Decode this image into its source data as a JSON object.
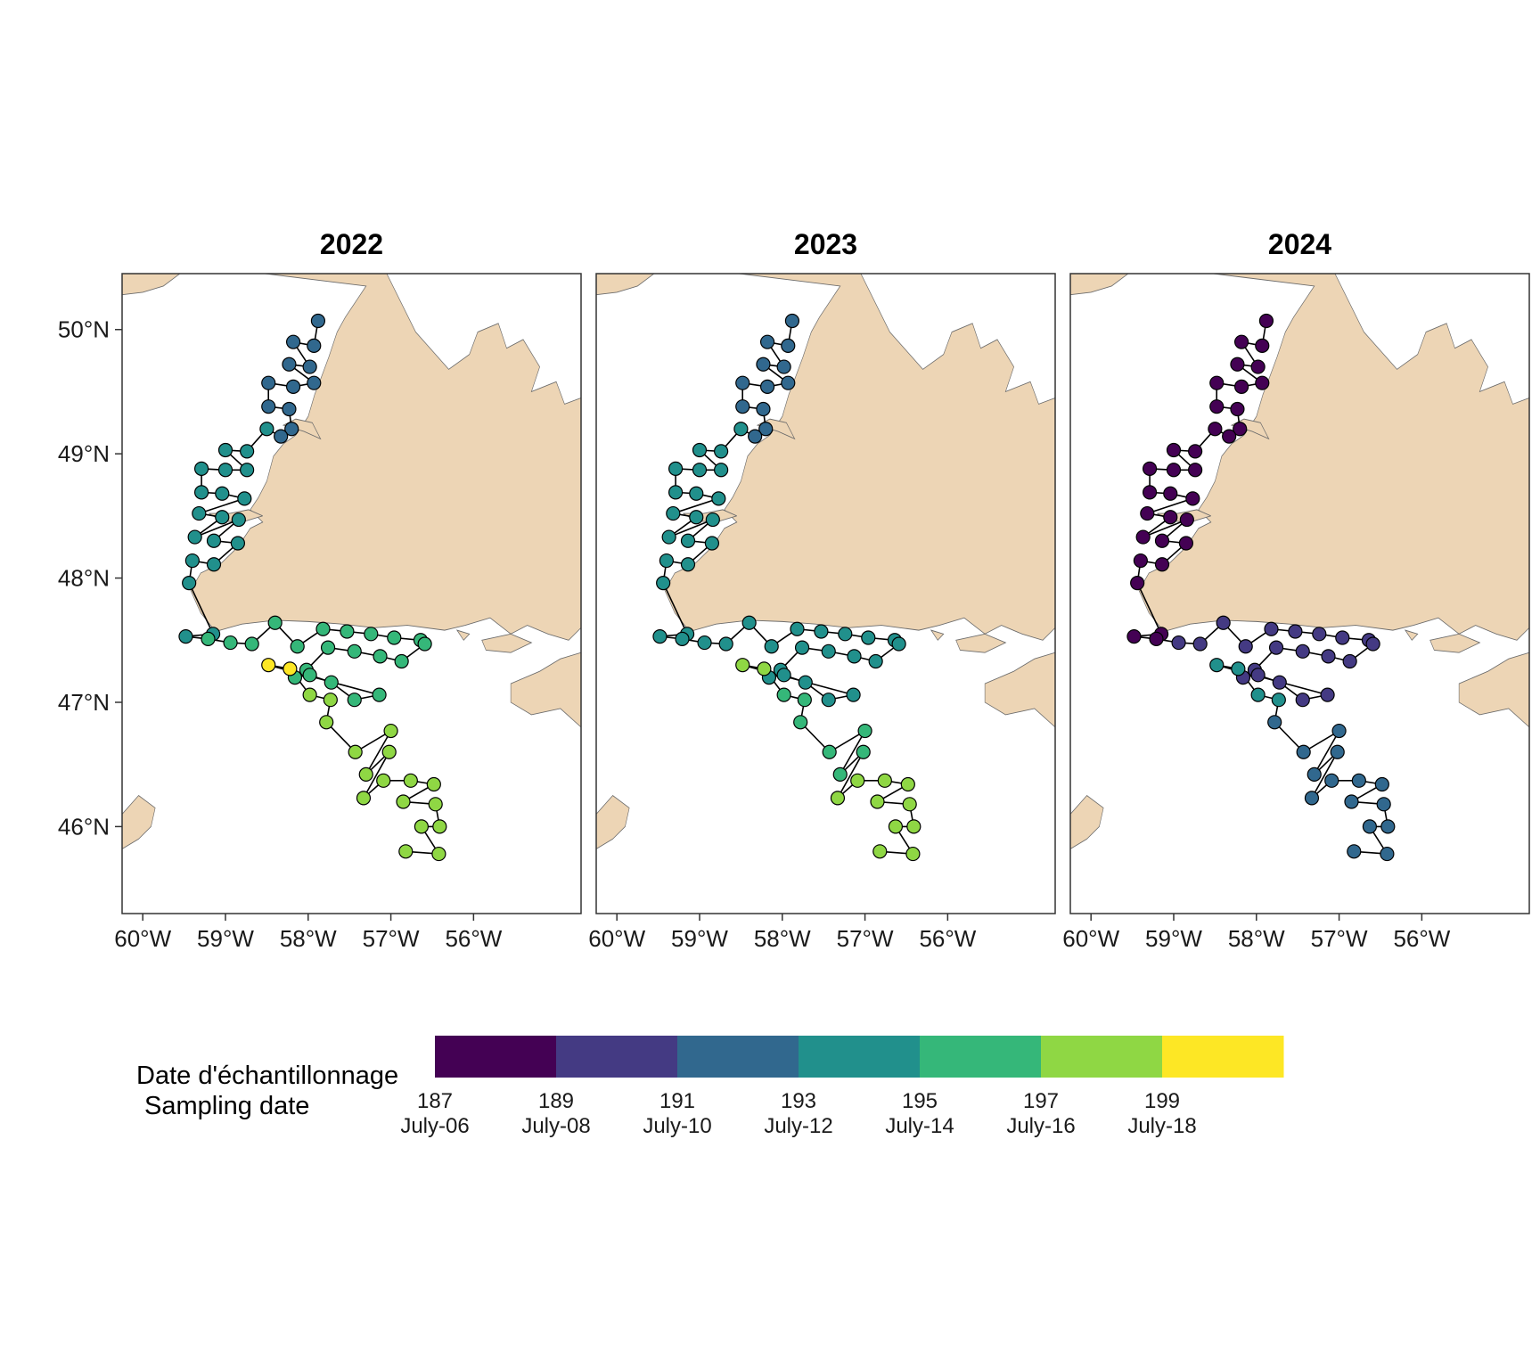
{
  "chart_data": {
    "type": "map",
    "panels": [
      {
        "title": "2022",
        "station_doy": [
          192,
          192,
          192,
          192,
          192,
          192,
          192,
          192,
          192,
          192,
          192,
          192,
          193,
          193,
          193,
          193,
          193,
          193,
          193,
          193,
          193,
          193,
          193,
          193,
          194,
          194,
          194,
          194,
          194,
          194,
          194,
          194,
          195,
          195,
          195,
          195,
          195,
          195,
          195,
          195,
          195,
          195,
          195,
          195,
          195,
          195,
          195,
          196,
          196,
          196,
          196,
          196,
          196,
          200,
          200,
          197,
          197,
          197,
          197,
          197,
          197,
          197,
          197,
          197,
          197,
          197,
          197,
          197,
          197,
          197,
          197,
          197
        ]
      },
      {
        "title": "2023",
        "station_doy": [
          192,
          192,
          192,
          192,
          192,
          192,
          192,
          192,
          192,
          192,
          192,
          192,
          193,
          193,
          193,
          193,
          193,
          193,
          193,
          193,
          193,
          193,
          193,
          193,
          193,
          193,
          193,
          193,
          193,
          193,
          193,
          193,
          193,
          194,
          194,
          194,
          194,
          194,
          194,
          194,
          194,
          194,
          194,
          194,
          194,
          194,
          194,
          194,
          194,
          194,
          194,
          194,
          194,
          197,
          197,
          196,
          196,
          196,
          196,
          196,
          196,
          196,
          197,
          197,
          197,
          197,
          197,
          197,
          197,
          197,
          197,
          197
        ]
      },
      {
        "title": "2024",
        "station_doy": [
          187,
          187,
          187,
          187,
          187,
          187,
          187,
          187,
          187,
          187,
          187,
          187,
          187,
          187,
          187,
          187,
          187,
          187,
          187,
          187,
          187,
          187,
          187,
          187,
          187,
          187,
          187,
          187,
          187,
          187,
          187,
          187,
          188,
          189,
          189,
          189,
          189,
          189,
          189,
          189,
          189,
          189,
          189,
          189,
          189,
          189,
          189,
          189,
          189,
          189,
          189,
          189,
          189,
          194,
          194,
          193,
          193,
          192,
          192,
          192,
          192,
          192,
          192,
          192,
          192,
          192,
          192,
          192,
          192,
          192,
          192,
          192
        ]
      }
    ],
    "stations": {
      "lon": [
        -57.88,
        -57.93,
        -58.18,
        -57.98,
        -58.23,
        -57.93,
        -58.18,
        -58.48,
        -58.48,
        -58.23,
        -58.2,
        -58.33,
        -58.5,
        -58.74,
        -59.0,
        -58.74,
        -59.0,
        -59.29,
        -59.29,
        -59.04,
        -58.77,
        -59.32,
        -59.04,
        -59.37,
        -58.84,
        -59.14,
        -58.85,
        -59.14,
        -59.4,
        -59.44,
        -59.15,
        -59.48,
        -59.21,
        -58.94,
        -58.68,
        -58.4,
        -58.13,
        -57.82,
        -57.53,
        -57.24,
        -56.96,
        -56.64,
        -56.59,
        -56.87,
        -57.13,
        -57.44,
        -57.76,
        -58.02,
        -58.16,
        -57.98,
        -57.72,
        -57.44,
        -57.14,
        -58.48,
        -58.22,
        -57.98,
        -57.73,
        -57.78,
        -57.43,
        -57.0,
        -57.3,
        -57.02,
        -57.33,
        -57.09,
        -56.76,
        -56.48,
        -56.85,
        -56.46,
        -56.41,
        -56.63,
        -56.42,
        -56.82
      ],
      "lat": [
        50.07,
        49.87,
        49.9,
        49.7,
        49.72,
        49.57,
        49.54,
        49.57,
        49.38,
        49.36,
        49.2,
        49.14,
        49.2,
        49.02,
        49.03,
        48.87,
        48.87,
        48.88,
        48.69,
        48.68,
        48.64,
        48.52,
        48.49,
        48.33,
        48.47,
        48.3,
        48.28,
        48.11,
        48.14,
        47.96,
        47.55,
        47.53,
        47.51,
        47.48,
        47.47,
        47.64,
        47.45,
        47.59,
        47.57,
        47.55,
        47.52,
        47.5,
        47.47,
        47.33,
        47.37,
        47.41,
        47.44,
        47.26,
        47.2,
        47.22,
        47.16,
        47.02,
        47.06,
        47.3,
        47.27,
        47.06,
        47.02,
        46.84,
        46.6,
        46.77,
        46.42,
        46.6,
        46.23,
        46.37,
        46.37,
        46.34,
        46.2,
        46.18,
        46.0,
        46.0,
        45.78,
        45.8
      ]
    },
    "track": [
      0,
      1,
      2,
      3,
      4,
      5,
      6,
      7,
      8,
      9,
      10,
      11,
      12,
      13,
      14,
      15,
      16,
      17,
      18,
      19,
      20,
      21,
      22,
      23,
      24,
      25,
      26,
      27,
      28,
      29,
      30,
      31,
      32,
      33,
      34,
      35,
      36,
      37,
      38,
      39,
      40,
      41,
      42,
      43,
      44,
      45,
      46,
      47,
      48,
      49,
      50,
      51,
      52,
      53,
      54,
      55,
      56,
      57,
      58,
      59,
      60,
      61,
      62,
      63,
      64,
      65,
      66,
      67,
      68,
      69,
      70,
      71
    ],
    "x_axis": {
      "ticks": [
        -60,
        -59,
        -58,
        -57,
        -56
      ],
      "labels": [
        "60°W",
        "59°W",
        "58°W",
        "57°W",
        "56°W"
      ],
      "range": [
        -60.25,
        -54.7
      ]
    },
    "y_axis": {
      "ticks": [
        46,
        47,
        48,
        49,
        50
      ],
      "labels": [
        "46°N",
        "47°N",
        "48°N",
        "49°N",
        "50°N"
      ],
      "range": [
        45.3,
        50.45
      ]
    },
    "legend": {
      "title_line1": "Date d'échantillonnage",
      "title_line2": "Sampling date",
      "placement": "bottom",
      "doy_range": [
        187,
        201
      ],
      "ticks": [
        {
          "doy": "187",
          "date": "July-06"
        },
        {
          "doy": "189",
          "date": "July-08"
        },
        {
          "doy": "191",
          "date": "July-10"
        },
        {
          "doy": "193",
          "date": "July-12"
        },
        {
          "doy": "195",
          "date": "July-14"
        },
        {
          "doy": "197",
          "date": "July-16"
        },
        {
          "doy": "199",
          "date": "July-18"
        }
      ],
      "bins": [
        {
          "from": 187,
          "to": 189,
          "color": "#440154"
        },
        {
          "from": 189,
          "to": 191,
          "color": "#443A83"
        },
        {
          "from": 191,
          "to": 193,
          "color": "#31688E"
        },
        {
          "from": 193,
          "to": 195,
          "color": "#21908C"
        },
        {
          "from": 195,
          "to": 197,
          "color": "#35B779"
        },
        {
          "from": 197,
          "to": 199,
          "color": "#8FD744"
        },
        {
          "from": 199,
          "to": 201,
          "color": "#FDE725"
        }
      ]
    },
    "colors": {
      "land": "#EDD5B5",
      "land_outline": "#6b6b6b",
      "water": "#ffffff",
      "track": "#000000",
      "frame": "#333333"
    }
  }
}
